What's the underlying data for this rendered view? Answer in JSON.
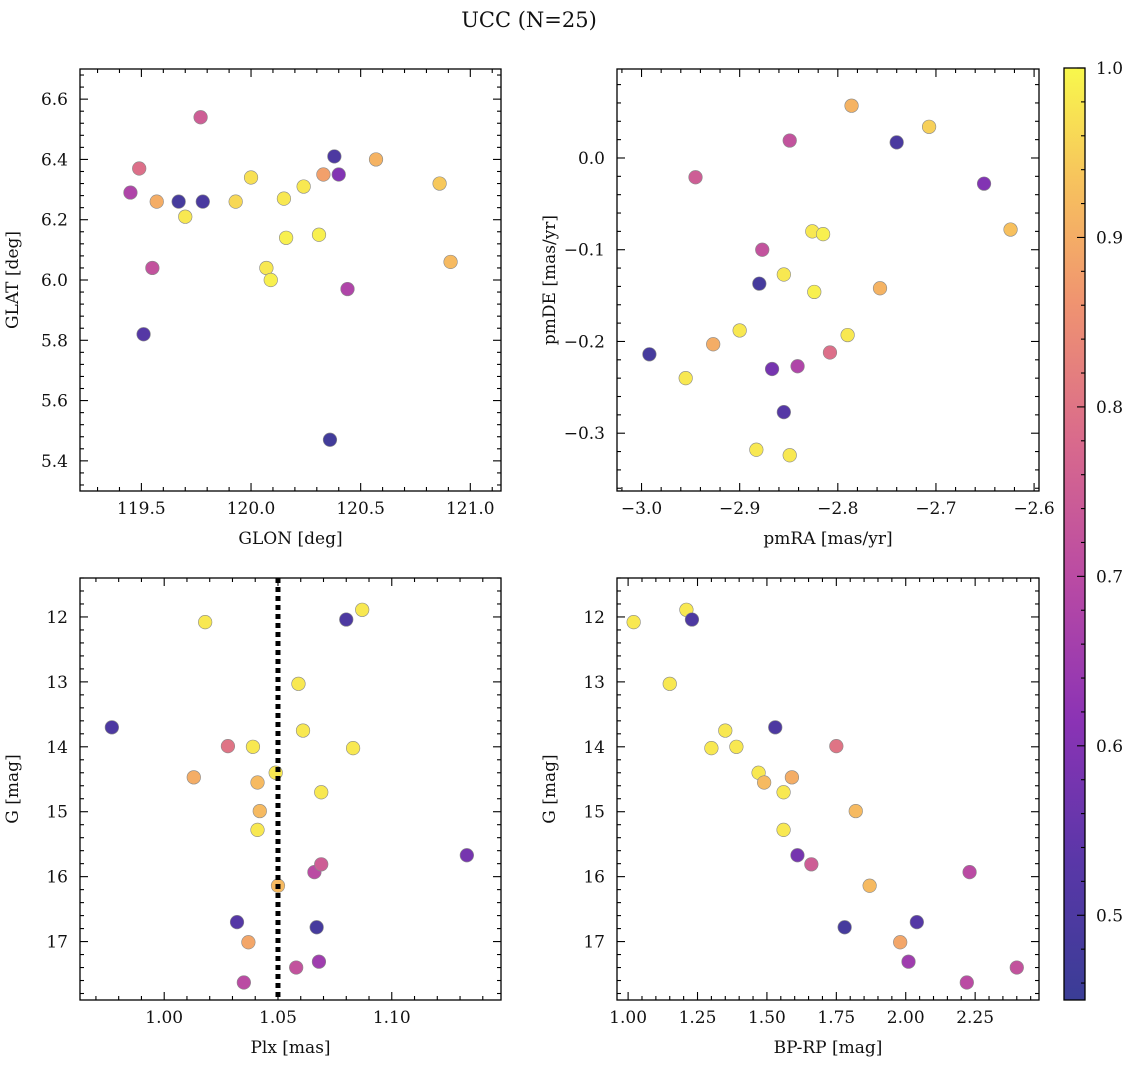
{
  "figure": {
    "title": "UCC (N=25)"
  },
  "colorbar": {
    "min": 0.45,
    "max": 1.0,
    "ticks": [
      0.5,
      0.6,
      0.7,
      0.8,
      0.9,
      1.0
    ],
    "tick_labels": [
      "0.5",
      "0.6",
      "0.7",
      "0.8",
      "0.9",
      "1.0"
    ],
    "colormap": "plasma"
  },
  "chart_data": [
    {
      "type": "scatter",
      "id": "glon-glat",
      "xlabel": "GLON [deg]",
      "ylabel": "GLAT [deg]",
      "xlim": [
        119.22,
        121.14
      ],
      "ylim": [
        5.3,
        6.7
      ],
      "y_inverted": false,
      "xticks": [
        119.5,
        120.0,
        120.5,
        121.0
      ],
      "xtick_labels": [
        "119.5",
        "120.0",
        "120.5",
        "121.0"
      ],
      "yticks": [
        5.4,
        5.6,
        5.8,
        6.0,
        6.2,
        6.4,
        6.6
      ],
      "ytick_labels": [
        "5.4",
        "5.6",
        "5.8",
        "6.0",
        "6.2",
        "6.4",
        "6.6"
      ],
      "points": [
        {
          "x": 119.45,
          "y": 6.29,
          "c": 0.68
        },
        {
          "x": 119.49,
          "y": 6.37,
          "c": 0.79
        },
        {
          "x": 119.51,
          "y": 5.82,
          "c": 0.52
        },
        {
          "x": 119.55,
          "y": 6.04,
          "c": 0.72
        },
        {
          "x": 119.57,
          "y": 6.26,
          "c": 0.9
        },
        {
          "x": 119.67,
          "y": 6.26,
          "c": 0.48
        },
        {
          "x": 119.7,
          "y": 6.21,
          "c": 0.98
        },
        {
          "x": 119.77,
          "y": 6.54,
          "c": 0.75
        },
        {
          "x": 119.78,
          "y": 6.26,
          "c": 0.49
        },
        {
          "x": 119.93,
          "y": 6.26,
          "c": 0.96
        },
        {
          "x": 120.0,
          "y": 6.34,
          "c": 0.97
        },
        {
          "x": 120.07,
          "y": 6.04,
          "c": 0.98
        },
        {
          "x": 120.09,
          "y": 6.0,
          "c": 0.99
        },
        {
          "x": 120.15,
          "y": 6.27,
          "c": 0.98
        },
        {
          "x": 120.16,
          "y": 6.14,
          "c": 0.99
        },
        {
          "x": 120.24,
          "y": 6.31,
          "c": 0.98
        },
        {
          "x": 120.31,
          "y": 6.15,
          "c": 0.99
        },
        {
          "x": 120.33,
          "y": 6.35,
          "c": 0.88
        },
        {
          "x": 120.36,
          "y": 5.47,
          "c": 0.47
        },
        {
          "x": 120.38,
          "y": 6.41,
          "c": 0.5
        },
        {
          "x": 120.4,
          "y": 6.35,
          "c": 0.6
        },
        {
          "x": 120.44,
          "y": 5.97,
          "c": 0.68
        },
        {
          "x": 120.57,
          "y": 6.4,
          "c": 0.91
        },
        {
          "x": 120.86,
          "y": 6.32,
          "c": 0.94
        },
        {
          "x": 120.91,
          "y": 6.06,
          "c": 0.92
        }
      ]
    },
    {
      "type": "scatter",
      "id": "pmra-pmde",
      "xlabel": "pmRA [mas/yr]",
      "ylabel": "pmDE [mas/yr]",
      "xlim": [
        -3.025,
        -2.595
      ],
      "ylim": [
        -0.363,
        0.097
      ],
      "y_inverted": false,
      "xticks": [
        -3.0,
        -2.9,
        -2.8,
        -2.7,
        -2.6
      ],
      "xtick_labels": [
        "−3.0",
        "−2.9",
        "−2.8",
        "−2.7",
        "−2.6"
      ],
      "yticks": [
        -0.3,
        -0.2,
        -0.1,
        0.0
      ],
      "ytick_labels": [
        "−0.3",
        "−0.2",
        "−0.1",
        "0.0"
      ],
      "points": [
        {
          "x": -2.992,
          "y": -0.214,
          "c": 0.48
        },
        {
          "x": -2.955,
          "y": -0.24,
          "c": 0.98
        },
        {
          "x": -2.945,
          "y": -0.021,
          "c": 0.75
        },
        {
          "x": -2.927,
          "y": -0.203,
          "c": 0.9
        },
        {
          "x": -2.9,
          "y": -0.188,
          "c": 0.98
        },
        {
          "x": -2.883,
          "y": -0.318,
          "c": 0.98
        },
        {
          "x": -2.88,
          "y": -0.137,
          "c": 0.48
        },
        {
          "x": -2.877,
          "y": -0.1,
          "c": 0.72
        },
        {
          "x": -2.867,
          "y": -0.23,
          "c": 0.58
        },
        {
          "x": -2.855,
          "y": -0.277,
          "c": 0.52
        },
        {
          "x": -2.855,
          "y": -0.127,
          "c": 0.98
        },
        {
          "x": -2.849,
          "y": 0.019,
          "c": 0.72
        },
        {
          "x": -2.849,
          "y": -0.324,
          "c": 0.98
        },
        {
          "x": -2.841,
          "y": -0.227,
          "c": 0.68
        },
        {
          "x": -2.826,
          "y": -0.08,
          "c": 0.98
        },
        {
          "x": -2.824,
          "y": -0.146,
          "c": 0.99
        },
        {
          "x": -2.815,
          "y": -0.083,
          "c": 0.99
        },
        {
          "x": -2.808,
          "y": -0.212,
          "c": 0.79
        },
        {
          "x": -2.79,
          "y": -0.193,
          "c": 0.98
        },
        {
          "x": -2.786,
          "y": 0.057,
          "c": 0.91
        },
        {
          "x": -2.757,
          "y": -0.142,
          "c": 0.91
        },
        {
          "x": -2.74,
          "y": 0.017,
          "c": 0.49
        },
        {
          "x": -2.707,
          "y": 0.034,
          "c": 0.95
        },
        {
          "x": -2.651,
          "y": -0.028,
          "c": 0.6
        },
        {
          "x": -2.624,
          "y": -0.078,
          "c": 0.93
        }
      ]
    },
    {
      "type": "scatter",
      "id": "plx-g",
      "xlabel": "Plx [mas]",
      "ylabel": "G [mag]",
      "xlim": [
        0.963,
        1.148
      ],
      "ylim": [
        17.9,
        11.4
      ],
      "y_inverted": true,
      "xticks": [
        1.0,
        1.05,
        1.1
      ],
      "xtick_labels": [
        "1.00",
        "1.05",
        "1.10"
      ],
      "yticks": [
        12,
        13,
        14,
        15,
        16,
        17
      ],
      "ytick_labels": [
        "12",
        "13",
        "14",
        "15",
        "16",
        "17"
      ],
      "vline": {
        "x": 1.05,
        "style": "dotted"
      },
      "points": [
        {
          "x": 0.977,
          "y": 13.7,
          "c": 0.5
        },
        {
          "x": 1.013,
          "y": 14.47,
          "c": 0.9
        },
        {
          "x": 1.018,
          "y": 12.08,
          "c": 0.98
        },
        {
          "x": 1.028,
          "y": 13.99,
          "c": 0.8
        },
        {
          "x": 1.032,
          "y": 16.7,
          "c": 0.52
        },
        {
          "x": 1.035,
          "y": 17.63,
          "c": 0.7
        },
        {
          "x": 1.037,
          "y": 17.01,
          "c": 0.89
        },
        {
          "x": 1.039,
          "y": 14.0,
          "c": 0.98
        },
        {
          "x": 1.041,
          "y": 15.28,
          "c": 0.98
        },
        {
          "x": 1.041,
          "y": 14.55,
          "c": 0.92
        },
        {
          "x": 1.042,
          "y": 14.99,
          "c": 0.92
        },
        {
          "x": 1.049,
          "y": 14.4,
          "c": 0.98
        },
        {
          "x": 1.05,
          "y": 16.14,
          "c": 0.92
        },
        {
          "x": 1.058,
          "y": 17.4,
          "c": 0.72
        },
        {
          "x": 1.059,
          "y": 13.03,
          "c": 0.98
        },
        {
          "x": 1.061,
          "y": 13.75,
          "c": 0.98
        },
        {
          "x": 1.066,
          "y": 15.93,
          "c": 0.7
        },
        {
          "x": 1.067,
          "y": 16.78,
          "c": 0.48
        },
        {
          "x": 1.068,
          "y": 17.31,
          "c": 0.65
        },
        {
          "x": 1.069,
          "y": 15.81,
          "c": 0.75
        },
        {
          "x": 1.069,
          "y": 14.7,
          "c": 0.98
        },
        {
          "x": 1.08,
          "y": 12.04,
          "c": 0.5
        },
        {
          "x": 1.083,
          "y": 14.02,
          "c": 0.98
        },
        {
          "x": 1.087,
          "y": 11.89,
          "c": 0.98
        },
        {
          "x": 1.133,
          "y": 15.67,
          "c": 0.58
        }
      ]
    },
    {
      "type": "scatter",
      "id": "bprp-g",
      "xlabel": "BP-RP [mag]",
      "ylabel": "G [mag]",
      "xlim": [
        0.96,
        2.48
      ],
      "ylim": [
        17.9,
        11.4
      ],
      "y_inverted": true,
      "xticks": [
        1.0,
        1.25,
        1.5,
        1.75,
        2.0,
        2.25
      ],
      "xtick_labels": [
        "1.00",
        "1.25",
        "1.50",
        "1.75",
        "2.00",
        "2.25"
      ],
      "yticks": [
        12,
        13,
        14,
        15,
        16,
        17
      ],
      "ytick_labels": [
        "12",
        "13",
        "14",
        "15",
        "16",
        "17"
      ],
      "points": [
        {
          "x": 1.02,
          "y": 12.08,
          "c": 0.98
        },
        {
          "x": 1.15,
          "y": 13.03,
          "c": 0.98
        },
        {
          "x": 1.21,
          "y": 11.89,
          "c": 0.98
        },
        {
          "x": 1.23,
          "y": 12.04,
          "c": 0.5
        },
        {
          "x": 1.3,
          "y": 14.02,
          "c": 0.98
        },
        {
          "x": 1.35,
          "y": 13.75,
          "c": 0.98
        },
        {
          "x": 1.39,
          "y": 14.0,
          "c": 0.98
        },
        {
          "x": 1.47,
          "y": 14.4,
          "c": 0.98
        },
        {
          "x": 1.49,
          "y": 14.55,
          "c": 0.92
        },
        {
          "x": 1.53,
          "y": 13.7,
          "c": 0.5
        },
        {
          "x": 1.56,
          "y": 15.28,
          "c": 0.98
        },
        {
          "x": 1.56,
          "y": 14.7,
          "c": 0.98
        },
        {
          "x": 1.59,
          "y": 14.47,
          "c": 0.9
        },
        {
          "x": 1.61,
          "y": 15.67,
          "c": 0.58
        },
        {
          "x": 1.66,
          "y": 15.81,
          "c": 0.75
        },
        {
          "x": 1.75,
          "y": 13.99,
          "c": 0.8
        },
        {
          "x": 1.78,
          "y": 16.78,
          "c": 0.48
        },
        {
          "x": 1.82,
          "y": 14.99,
          "c": 0.92
        },
        {
          "x": 1.87,
          "y": 16.14,
          "c": 0.92
        },
        {
          "x": 1.98,
          "y": 17.01,
          "c": 0.89
        },
        {
          "x": 2.01,
          "y": 17.31,
          "c": 0.65
        },
        {
          "x": 2.04,
          "y": 16.7,
          "c": 0.52
        },
        {
          "x": 2.22,
          "y": 17.63,
          "c": 0.7
        },
        {
          "x": 2.23,
          "y": 15.93,
          "c": 0.7
        },
        {
          "x": 2.4,
          "y": 17.4,
          "c": 0.72
        }
      ]
    }
  ]
}
